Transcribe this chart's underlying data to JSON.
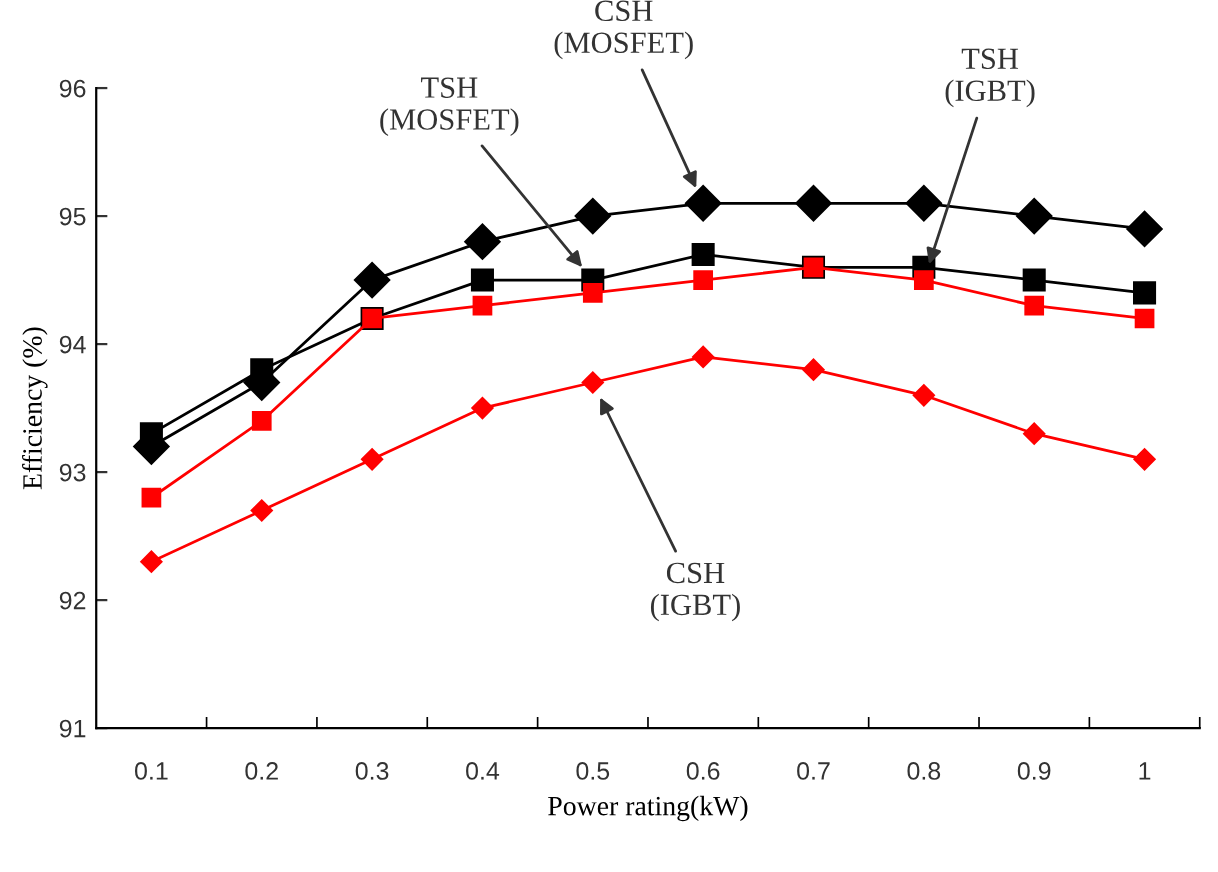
{
  "chart_data": {
    "type": "line",
    "xlabel": "Power rating(kW)",
    "ylabel": "Efficiency (%)",
    "categories": [
      "0.1",
      "0.2",
      "0.3",
      "0.4",
      "0.5",
      "0.6",
      "0.7",
      "0.8",
      "0.9",
      "1"
    ],
    "ylim": [
      91,
      96
    ],
    "yticks": [
      91,
      92,
      93,
      94,
      95,
      96
    ],
    "grid": false,
    "legend": false,
    "series": [
      {
        "name": "CSH\n(MOSFET)",
        "color": "#000000",
        "marker": "diamond",
        "values": [
          93.2,
          93.7,
          94.5,
          94.8,
          95.0,
          95.1,
          95.1,
          95.1,
          95.0,
          94.9
        ]
      },
      {
        "name": "TSH\n(MOSFET)",
        "color": "#000000",
        "marker": "square",
        "values": [
          93.3,
          93.8,
          94.2,
          94.5,
          94.5,
          94.7,
          94.6,
          94.6,
          94.5,
          94.4
        ]
      },
      {
        "name": "TSH\n(IGBT)",
        "color": "#ff0000",
        "marker": "square",
        "values": [
          92.8,
          93.4,
          94.2,
          94.3,
          94.4,
          94.5,
          94.6,
          94.5,
          94.3,
          94.2
        ]
      },
      {
        "name": "CSH\n(IGBT)",
        "color": "#ff0000",
        "marker": "diamond",
        "values": [
          92.3,
          92.7,
          93.1,
          93.5,
          93.7,
          93.9,
          93.8,
          93.6,
          93.3,
          93.1
        ]
      }
    ]
  }
}
